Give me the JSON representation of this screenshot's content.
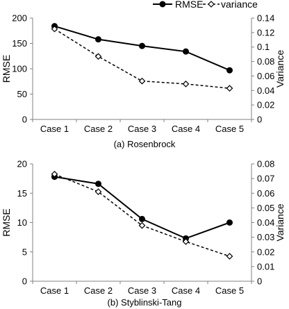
{
  "legend": {
    "items": [
      {
        "label": "RMSE",
        "style": "solid",
        "marker": "circle-filled"
      },
      {
        "label": "variance",
        "style": "dashed",
        "marker": "diamond-open"
      }
    ],
    "placement": "top-right"
  },
  "colors": {
    "line": "#000000",
    "marker_fill_open": "#ffffff",
    "axis": "#808080"
  },
  "chart_data": [
    {
      "type": "line",
      "caption": "(a) Rosenbrock",
      "categories": [
        "Case 1",
        "Case 2",
        "Case 3",
        "Case 4",
        "Case 5"
      ],
      "ylabel": "RMSE",
      "y2label": "Variance",
      "ylim": [
        0,
        200
      ],
      "yticks": [
        "0",
        "50",
        "100",
        "150",
        "200"
      ],
      "y2lim": [
        0,
        0.14
      ],
      "y2ticks": [
        "0",
        "0.02",
        "0.04",
        "0.06",
        "0.08",
        "0.1",
        "0.12",
        "0.14"
      ],
      "grid": false,
      "series": [
        {
          "name": "RMSE",
          "axis": "left",
          "values": [
            184,
            158,
            145,
            134,
            97
          ]
        },
        {
          "name": "variance",
          "axis": "right",
          "values": [
            0.125,
            0.087,
            0.053,
            0.049,
            0.043
          ]
        }
      ]
    },
    {
      "type": "line",
      "caption": "(b) Styblinski-Tang",
      "categories": [
        "Case 1",
        "Case 2",
        "Case 3",
        "Case 4",
        "Case 5"
      ],
      "ylabel": "RMSE",
      "y2label": "Variance",
      "ylim": [
        0,
        20
      ],
      "yticks": [
        "0",
        "5",
        "10",
        "15",
        "20"
      ],
      "y2lim": [
        0,
        0.08
      ],
      "y2ticks": [
        "0",
        "0.01",
        "0.02",
        "0.03",
        "0.04",
        "0.05",
        "0.06",
        "0.07",
        "0.08"
      ],
      "grid": false,
      "series": [
        {
          "name": "RMSE",
          "axis": "left",
          "values": [
            17.8,
            16.6,
            10.6,
            7.3,
            10.0
          ]
        },
        {
          "name": "variance",
          "axis": "right",
          "values": [
            0.073,
            0.061,
            0.038,
            0.027,
            0.017
          ]
        }
      ]
    }
  ]
}
